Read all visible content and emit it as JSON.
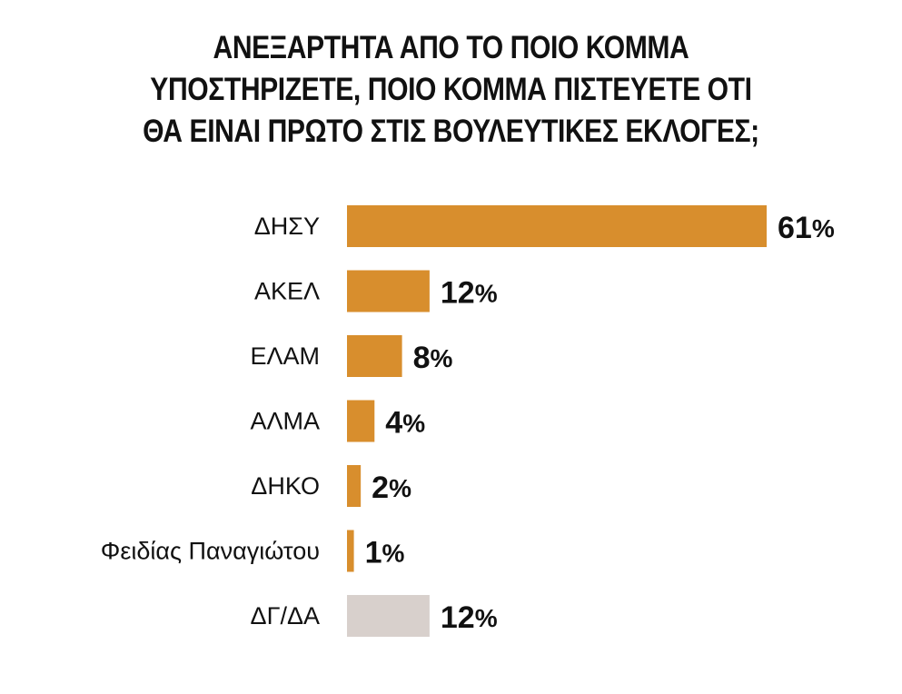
{
  "chart_data": {
    "type": "bar",
    "orientation": "horizontal",
    "title_lines": [
      "ΑΝΕΞΑΡΤΗΤΑ ΑΠΟ ΤΟ ΠΟΙΟ ΚΟΜΜΑ",
      "ΥΠΟΣΤΗΡΙΖΕΤΕ, ΠΟΙΟ ΚΟΜΜΑ ΠΙΣΤΕΥΕΤΕ ΟΤΙ",
      "ΘΑ ΕΙΝΑΙ ΠΡΩΤΟ ΣΤΙΣ ΒΟΥΛΕΥΤΙΚΕΣ ΕΚΛΟΓΕΣ;"
    ],
    "categories": [
      "ΔΗΣΥ",
      "ΑΚΕΛ",
      "ΕΛΑΜ",
      "ΑΛΜΑ",
      "ΔΗΚΟ",
      "Φειδίας Παναγιώτου",
      "ΔΓ/ΔΑ"
    ],
    "values": [
      61,
      12,
      8,
      4,
      2,
      1,
      12
    ],
    "value_suffix": "%",
    "colors": [
      "#D88E2D",
      "#D88E2D",
      "#D88E2D",
      "#D88E2D",
      "#D88E2D",
      "#D88E2D",
      "#D8D0CC"
    ],
    "xlim": [
      0,
      61
    ],
    "grid": false,
    "legend": "none"
  }
}
